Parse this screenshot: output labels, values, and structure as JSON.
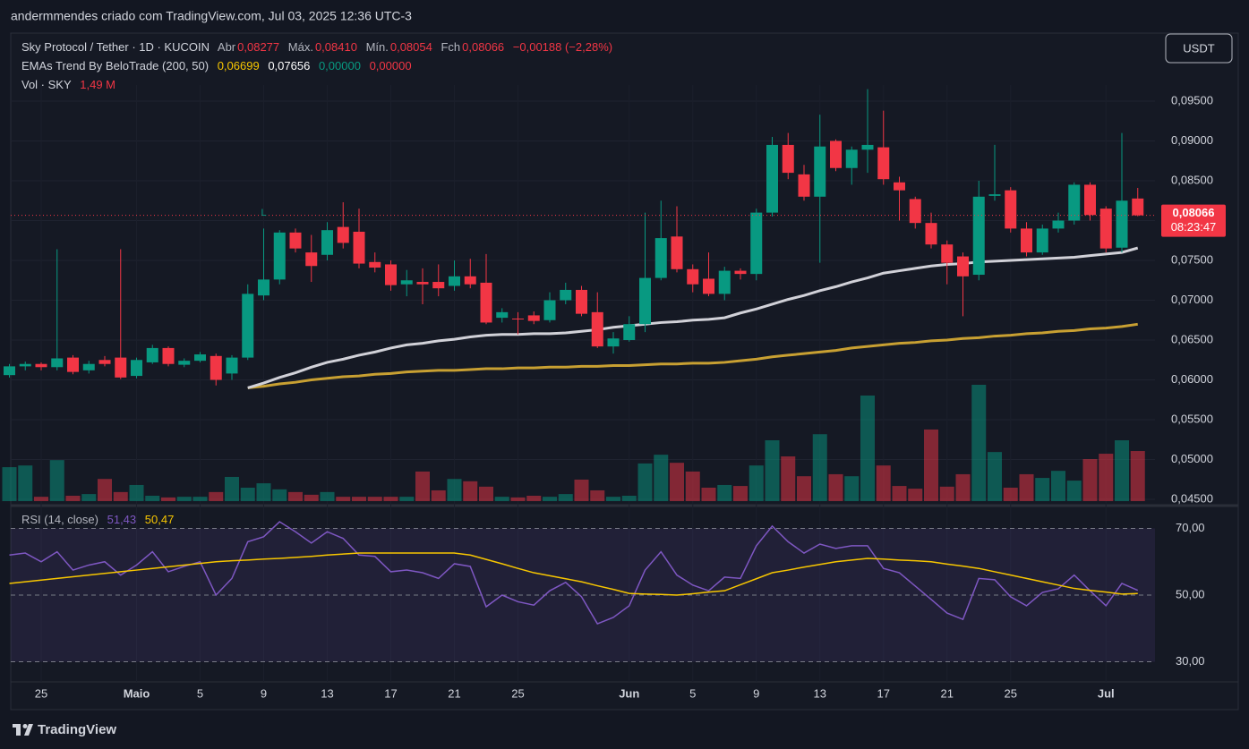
{
  "top_bar": "andermmendes criado com TradingView.com, Jul 03, 2025 12:36 UTC-3",
  "footer": "TradingView",
  "currency_button": "USDT",
  "chart_data": [
    {
      "type": "candlestick",
      "title": "Sky Protocol / Tether · 1D · KUCOIN",
      "ohlc_legend": [
        {
          "label": "Abr",
          "value": "0,08277"
        },
        {
          "label": "Máx.",
          "value": "0,08410"
        },
        {
          "label": "Mín.",
          "value": "0,08054"
        },
        {
          "label": "Fch",
          "value": "0,08066"
        }
      ],
      "change": "−0,00188 (−2,28%)",
      "ema_legend": {
        "name": "EMAs Trend By BeloTrade (200, 50)",
        "values": [
          "0,06699",
          "0,07656",
          "0,00000",
          "0,00000"
        ]
      },
      "annotation": "L",
      "price_label": "0,08066",
      "countdown": "08:23:47",
      "up_color": "#089981",
      "down_color": "#f23645",
      "categories": [
        null,
        null,
        "25",
        null,
        null,
        null,
        null,
        null,
        "Maio",
        null,
        null,
        null,
        "5",
        null,
        null,
        null,
        "9",
        null,
        null,
        null,
        "13",
        null,
        null,
        null,
        "17",
        null,
        null,
        null,
        "21",
        null,
        null,
        null,
        "25",
        null,
        null,
        null,
        null,
        null,
        null,
        "Jun",
        null,
        null,
        null,
        "5",
        null,
        null,
        null,
        "9",
        null,
        null,
        null,
        "13",
        null,
        null,
        null,
        "17",
        null,
        null,
        null,
        "21",
        null,
        null,
        null,
        "25",
        null,
        null,
        null,
        null,
        null,
        "Jul",
        null,
        null
      ],
      "open": [
        0.0606,
        0.0617,
        0.062,
        0.0616,
        0.0628,
        0.0612,
        0.0625,
        0.0628,
        0.0605,
        0.0622,
        0.064,
        0.0619,
        0.0624,
        0.063,
        0.0608,
        0.0628,
        0.0706,
        0.0726,
        0.0785,
        0.076,
        0.0757,
        0.0792,
        0.0786,
        0.0748,
        0.0745,
        0.072,
        0.0723,
        0.0723,
        0.0718,
        0.073,
        0.0722,
        0.0678,
        0.0677,
        0.0681,
        0.0675,
        0.07,
        0.0713,
        0.0685,
        0.0642,
        0.065,
        0.067,
        0.0728,
        0.078,
        0.0739,
        0.0727,
        0.0708,
        0.0737,
        0.0733,
        0.081,
        0.0895,
        0.0858,
        0.083,
        0.09,
        0.0866,
        0.0889,
        0.0892,
        0.0848,
        0.0827,
        0.0797,
        0.077,
        0.0755,
        0.0732,
        0.0831,
        0.0838,
        0.079,
        0.076,
        0.079,
        0.08,
        0.0845,
        0.0815,
        0.0766,
        0.08277
      ],
      "high": [
        0.062,
        0.0623,
        0.0622,
        0.0764,
        0.0631,
        0.0624,
        0.063,
        0.0764,
        0.0628,
        0.0644,
        0.0642,
        0.0627,
        0.0635,
        0.0633,
        0.0631,
        0.072,
        0.079,
        0.0788,
        0.079,
        0.0782,
        0.0798,
        0.0823,
        0.0815,
        0.076,
        0.075,
        0.0738,
        0.074,
        0.0745,
        0.075,
        0.0752,
        0.0758,
        0.069,
        0.0685,
        0.0686,
        0.071,
        0.0722,
        0.0718,
        0.071,
        0.066,
        0.068,
        0.081,
        0.0825,
        0.0818,
        0.0745,
        0.076,
        0.0742,
        0.074,
        0.0815,
        0.0905,
        0.091,
        0.087,
        0.0933,
        0.0902,
        0.0893,
        0.0965,
        0.0938,
        0.0855,
        0.083,
        0.081,
        0.0775,
        0.076,
        0.085,
        0.0895,
        0.0842,
        0.0798,
        0.0795,
        0.081,
        0.0848,
        0.0848,
        0.0818,
        0.091,
        0.0841
      ],
      "low": [
        0.0603,
        0.0612,
        0.0612,
        0.0612,
        0.0607,
        0.0608,
        0.0617,
        0.0601,
        0.0602,
        0.062,
        0.0617,
        0.0616,
        0.0622,
        0.0593,
        0.06,
        0.0625,
        0.07,
        0.072,
        0.076,
        0.0723,
        0.075,
        0.0765,
        0.074,
        0.0735,
        0.0712,
        0.0705,
        0.0695,
        0.0705,
        0.0712,
        0.0715,
        0.067,
        0.0672,
        0.0657,
        0.067,
        0.0672,
        0.0695,
        0.068,
        0.064,
        0.0633,
        0.0648,
        0.066,
        0.0725,
        0.0735,
        0.071,
        0.0705,
        0.07,
        0.0726,
        0.0725,
        0.0805,
        0.0852,
        0.0825,
        0.0747,
        0.0862,
        0.0845,
        0.086,
        0.0845,
        0.08,
        0.079,
        0.0765,
        0.072,
        0.068,
        0.0725,
        0.0825,
        0.0785,
        0.0755,
        0.0757,
        0.0785,
        0.0795,
        0.08,
        0.076,
        0.076,
        0.08054
      ],
      "close": [
        0.0617,
        0.062,
        0.0616,
        0.0627,
        0.061,
        0.062,
        0.062,
        0.0603,
        0.0625,
        0.064,
        0.062,
        0.0624,
        0.0632,
        0.06,
        0.0628,
        0.0708,
        0.0726,
        0.0785,
        0.0765,
        0.0743,
        0.0788,
        0.0772,
        0.0746,
        0.0741,
        0.0719,
        0.0725,
        0.072,
        0.0715,
        0.073,
        0.072,
        0.0672,
        0.0685,
        0.0676,
        0.0674,
        0.07,
        0.0713,
        0.0683,
        0.0642,
        0.0652,
        0.067,
        0.0728,
        0.0778,
        0.0739,
        0.072,
        0.0708,
        0.0737,
        0.0733,
        0.081,
        0.0895,
        0.086,
        0.083,
        0.0893,
        0.0866,
        0.0889,
        0.0895,
        0.0852,
        0.0838,
        0.0797,
        0.077,
        0.0747,
        0.073,
        0.083,
        0.0833,
        0.079,
        0.076,
        0.079,
        0.08,
        0.0845,
        0.0807,
        0.0765,
        0.0825,
        0.08066
      ],
      "series": [
        {
          "color": "#c8a032",
          "values": [
            null,
            null,
            null,
            null,
            null,
            null,
            null,
            null,
            null,
            null,
            null,
            null,
            null,
            null,
            null,
            0.059,
            0.0592,
            0.0595,
            0.0597,
            0.06,
            0.0602,
            0.0604,
            0.0605,
            0.0607,
            0.0608,
            0.061,
            0.0611,
            0.0612,
            0.0612,
            0.0613,
            0.0614,
            0.0614,
            0.0615,
            0.0615,
            0.0616,
            0.0616,
            0.0617,
            0.0617,
            0.0618,
            0.0618,
            0.0619,
            0.062,
            0.062,
            0.0621,
            0.0621,
            0.0622,
            0.0624,
            0.0626,
            0.0629,
            0.0631,
            0.0633,
            0.0635,
            0.0637,
            0.064,
            0.0642,
            0.0644,
            0.0646,
            0.0647,
            0.0649,
            0.065,
            0.0652,
            0.0653,
            0.0655,
            0.0656,
            0.0658,
            0.0659,
            0.0661,
            0.0662,
            0.0664,
            0.0665,
            0.0667,
            0.06699
          ]
        },
        {
          "color": "#d1d1d8",
          "values": [
            null,
            null,
            null,
            null,
            null,
            null,
            null,
            null,
            null,
            null,
            null,
            null,
            null,
            null,
            null,
            0.059,
            0.0596,
            0.0603,
            0.0609,
            0.0616,
            0.0622,
            0.0626,
            0.0631,
            0.0635,
            0.064,
            0.0644,
            0.0646,
            0.0649,
            0.0651,
            0.0654,
            0.0656,
            0.0657,
            0.0657,
            0.0658,
            0.0658,
            0.0659,
            0.0661,
            0.0663,
            0.0666,
            0.0668,
            0.067,
            0.0672,
            0.0673,
            0.0675,
            0.0676,
            0.0678,
            0.0684,
            0.0689,
            0.0695,
            0.0701,
            0.0706,
            0.0712,
            0.0717,
            0.0723,
            0.0728,
            0.0734,
            0.0737,
            0.074,
            0.0743,
            0.0745,
            0.0746,
            0.0748,
            0.0749,
            0.075,
            0.0751,
            0.0752,
            0.0753,
            0.0754,
            0.0756,
            0.0758,
            0.076,
            0.07656
          ]
        }
      ],
      "ylim": [
        0.04478,
        0.09702
      ],
      "yticks": [
        {
          "value": 0.045,
          "label": "0,04500"
        },
        {
          "value": 0.05,
          "label": "0,05000"
        },
        {
          "value": 0.055,
          "label": "0,05500"
        },
        {
          "value": 0.06,
          "label": "0,06000"
        },
        {
          "value": 0.065,
          "label": "0,06500"
        },
        {
          "value": 0.07,
          "label": "0,07000"
        },
        {
          "value": 0.075,
          "label": "0,07500"
        },
        {
          "value": 0.08,
          "label": "0,08000"
        },
        {
          "value": 0.085,
          "label": "0,08500"
        },
        {
          "value": 0.09,
          "label": "0,09000"
        },
        {
          "value": 0.095,
          "label": "0,09500"
        }
      ]
    },
    {
      "type": "bar",
      "title": "Vol · SKY",
      "legend_value": "1,49 M",
      "up_color": "rgba(8,153,129,0.5)",
      "down_color": "rgba(242,54,69,0.5)",
      "values": [
        1.01,
        1.06,
        0.13,
        1.22,
        0.16,
        0.21,
        0.66,
        0.27,
        0.48,
        0.16,
        0.11,
        0.13,
        0.13,
        0.27,
        0.72,
        0.4,
        0.53,
        0.35,
        0.27,
        0.19,
        0.27,
        0.13,
        0.13,
        0.13,
        0.13,
        0.13,
        0.88,
        0.32,
        0.66,
        0.59,
        0.43,
        0.13,
        0.11,
        0.16,
        0.13,
        0.21,
        0.64,
        0.32,
        0.13,
        0.16,
        1.12,
        1.38,
        1.14,
        0.88,
        0.4,
        0.48,
        0.45,
        1.06,
        1.81,
        1.33,
        0.74,
        1.99,
        0.8,
        0.74,
        3.14,
        1.06,
        0.45,
        0.37,
        2.13,
        0.43,
        0.8,
        3.46,
        1.46,
        0.4,
        0.8,
        0.69,
        0.9,
        0.61,
        1.25,
        1.41,
        1.81,
        1.49
      ]
    },
    {
      "type": "line",
      "title": "RSI (14, close)",
      "legend_values": [
        "51,43",
        "50,47"
      ],
      "series": [
        {
          "color": "#7e57c2",
          "values": [
            62,
            62.6,
            60,
            63,
            57.5,
            59,
            60,
            56,
            59,
            63,
            57,
            58.6,
            60,
            50,
            55,
            66,
            67.5,
            72,
            69,
            65.6,
            69,
            67,
            62,
            61.6,
            57,
            57.5,
            56.7,
            55,
            59.4,
            58.6,
            46.5,
            50,
            48,
            47,
            51.3,
            53.8,
            49.5,
            41.4,
            43.3,
            46.8,
            57.5,
            63,
            56,
            53,
            51.3,
            55.4,
            55,
            64.8,
            70.7,
            66,
            62.6,
            65.3,
            64,
            64.8,
            64.8,
            58,
            56.7,
            52.7,
            48.7,
            44.6,
            42.7,
            55,
            54.6,
            49.5,
            46.8,
            50.8,
            51.9,
            56,
            51.3,
            46.8,
            53.5,
            51.43
          ]
        },
        {
          "color": "#f7c600",
          "values": [
            53.5,
            54,
            54.5,
            55,
            55.5,
            56,
            56.5,
            57,
            57.5,
            58,
            58.5,
            59,
            59.5,
            60,
            60.3,
            60.5,
            60.8,
            61,
            61.3,
            61.6,
            62,
            62.3,
            62.6,
            62.6,
            62.6,
            62.6,
            62.6,
            62.6,
            62.6,
            62,
            60.7,
            59.4,
            58,
            56.7,
            55.8,
            54.9,
            54,
            52.8,
            51.7,
            50.5,
            50.3,
            50.2,
            50,
            50.4,
            50.9,
            51.3,
            53.1,
            54.9,
            56.7,
            57.5,
            58.4,
            59.2,
            60,
            60.5,
            61,
            60.8,
            60.5,
            60.3,
            60,
            59.3,
            58.7,
            58,
            57,
            56,
            55,
            54,
            53,
            52,
            51.4,
            50.9,
            50.3,
            50.47
          ]
        }
      ],
      "ylim": [
        24.5,
        75.5
      ],
      "yticks": [
        {
          "value": 70,
          "label": "70,00"
        },
        {
          "value": 50,
          "label": "50,00"
        },
        {
          "value": 30,
          "label": "30,00"
        }
      ]
    }
  ]
}
